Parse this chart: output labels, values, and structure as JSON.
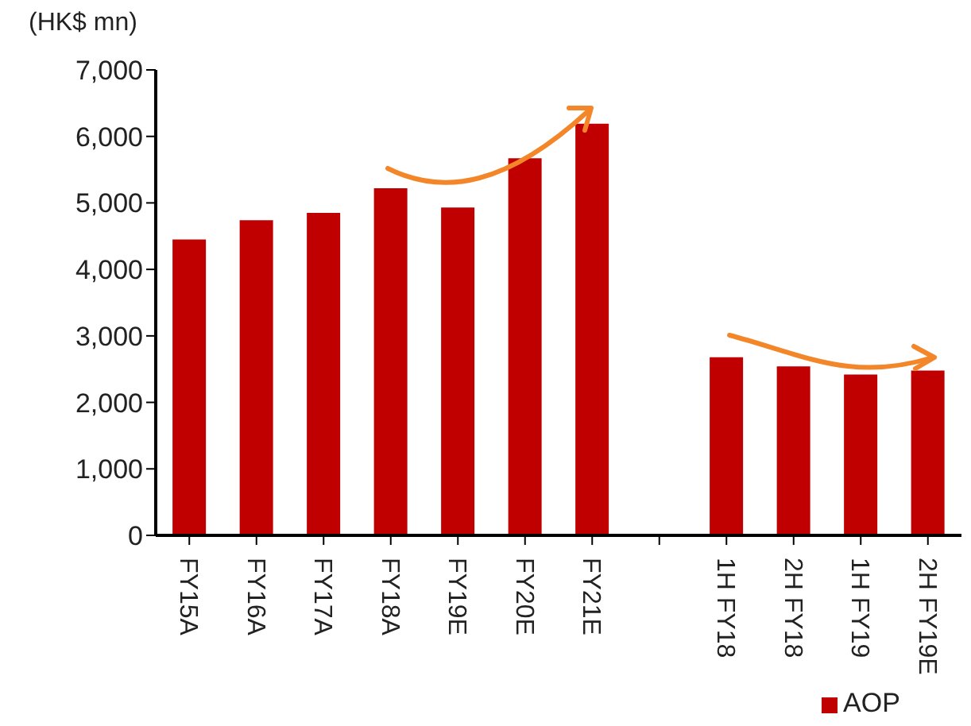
{
  "chart_data": {
    "type": "bar",
    "ylabel": "(HK$ mn)",
    "categories": [
      "FY15A",
      "FY16A",
      "FY17A",
      "FY18A",
      "FY19E",
      "FY20E",
      "FY21E",
      null,
      "1H FY18",
      "2H FY18",
      "1H FY19",
      "2H FY19E"
    ],
    "series": [
      {
        "name": "AOP",
        "color": "#c00000",
        "values": [
          4450,
          4740,
          4850,
          5220,
          4930,
          5670,
          6190,
          null,
          2680,
          2540,
          2420,
          2480
        ]
      }
    ],
    "ylim": [
      0,
      7000
    ],
    "yticks": [
      {
        "value": 0,
        "label": "0"
      },
      {
        "value": 1000,
        "label": "1,000"
      },
      {
        "value": 2000,
        "label": "2,000"
      },
      {
        "value": 3000,
        "label": "3,000"
      },
      {
        "value": 4000,
        "label": "4,000"
      },
      {
        "value": 5000,
        "label": "5,000"
      },
      {
        "value": 6000,
        "label": "6,000"
      },
      {
        "value": 7000,
        "label": "7,000"
      }
    ],
    "grid": false,
    "legend": "bottom"
  }
}
